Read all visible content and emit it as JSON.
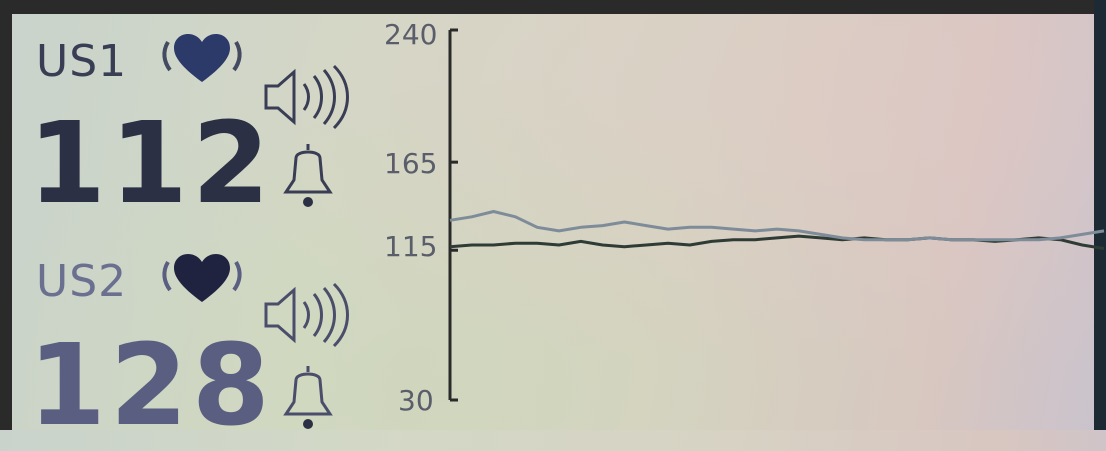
{
  "monitor": {
    "us1": {
      "label": "US1",
      "value": "112"
    },
    "us2": {
      "label": "US2",
      "value": "128"
    }
  },
  "icons": {
    "heart": "heart-icon",
    "speaker": "speaker-sound-icon",
    "bell": "alarm-bell-icon"
  },
  "colors": {
    "us1_trace": "#2f3b35",
    "us2_trace": "#7e8c9a",
    "axis": "#2a2a2a"
  },
  "chart_data": {
    "type": "line",
    "title": "",
    "xlabel": "",
    "ylabel": "",
    "ylim": [
      30,
      240
    ],
    "yticks": [
      "240",
      "165",
      "115",
      "30"
    ],
    "ytick_values": [
      240,
      165,
      115,
      30
    ],
    "x": [
      0,
      1,
      2,
      3,
      4,
      5,
      6,
      7,
      8,
      9,
      10,
      11,
      12,
      13,
      14,
      15,
      16,
      17,
      18,
      19,
      20,
      21,
      22,
      23,
      24,
      25,
      26,
      27,
      28,
      29,
      30
    ],
    "series": [
      {
        "values": [
          117,
          118,
          118,
          119,
          119,
          118,
          120,
          118,
          117,
          118,
          119,
          118,
          120,
          121,
          121,
          122,
          123,
          122,
          121,
          122,
          121,
          121,
          122,
          121,
          121,
          120,
          121,
          122,
          121,
          118,
          116
        ]
      },
      {
        "values": [
          132,
          134,
          137,
          134,
          128,
          126,
          128,
          129,
          131,
          129,
          127,
          128,
          128,
          127,
          126,
          127,
          126,
          124,
          122,
          121,
          121,
          121,
          122,
          121,
          121,
          121,
          121,
          121,
          122,
          124,
          126
        ]
      }
    ]
  }
}
